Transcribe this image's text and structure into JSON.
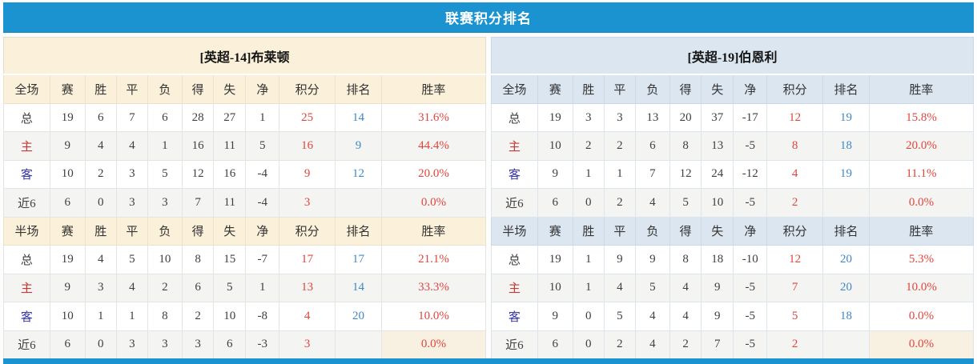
{
  "title": "联赛积分排名",
  "colors": {
    "title_bar": "#1B93D1",
    "home_header_bg": "#FBF0DA",
    "away_header_bg": "#DCE6F0",
    "points_text": "#E2453C",
    "rank_text": "#4288C7",
    "win_rate_text": "#E2453C",
    "home_row_label": "#C23A33",
    "away_row_label": "#3434AE"
  },
  "columns": [
    "赛",
    "胜",
    "平",
    "负",
    "得",
    "失",
    "净",
    "积分",
    "排名",
    "胜率"
  ],
  "teams": [
    {
      "name": "[英超-14]布莱顿",
      "sections": [
        {
          "scope": "全场",
          "rows": [
            {
              "label": "总",
              "values": [
                19,
                6,
                7,
                6,
                28,
                27,
                1
              ],
              "points": 25,
              "rank": "14",
              "win_rate": "31.6%"
            },
            {
              "label": "主",
              "values": [
                9,
                4,
                4,
                1,
                16,
                11,
                5
              ],
              "points": 16,
              "rank": "9",
              "win_rate": "44.4%"
            },
            {
              "label": "客",
              "values": [
                10,
                2,
                3,
                5,
                12,
                16,
                -4
              ],
              "points": 9,
              "rank": "12",
              "win_rate": "20.0%"
            },
            {
              "label": "近6",
              "values": [
                6,
                0,
                3,
                3,
                7,
                11,
                -4
              ],
              "points": 3,
              "rank": "",
              "win_rate": "0.0%"
            }
          ]
        },
        {
          "scope": "半场",
          "rows": [
            {
              "label": "总",
              "values": [
                19,
                4,
                5,
                10,
                8,
                15,
                -7
              ],
              "points": 17,
              "rank": "17",
              "win_rate": "21.1%"
            },
            {
              "label": "主",
              "values": [
                9,
                3,
                4,
                2,
                6,
                5,
                1
              ],
              "points": 13,
              "rank": "14",
              "win_rate": "33.3%"
            },
            {
              "label": "客",
              "values": [
                10,
                1,
                1,
                8,
                2,
                10,
                -8
              ],
              "points": 4,
              "rank": "20",
              "win_rate": "10.0%"
            },
            {
              "label": "近6",
              "values": [
                6,
                0,
                3,
                3,
                3,
                6,
                -3
              ],
              "points": 3,
              "rank": "",
              "win_rate": "0.0%"
            }
          ]
        }
      ]
    },
    {
      "name": "[英超-19]伯恩利",
      "sections": [
        {
          "scope": "全场",
          "rows": [
            {
              "label": "总",
              "values": [
                19,
                3,
                3,
                13,
                20,
                37,
                -17
              ],
              "points": 12,
              "rank": "19",
              "win_rate": "15.8%"
            },
            {
              "label": "主",
              "values": [
                10,
                2,
                2,
                6,
                8,
                13,
                -5
              ],
              "points": 8,
              "rank": "18",
              "win_rate": "20.0%"
            },
            {
              "label": "客",
              "values": [
                9,
                1,
                1,
                7,
                12,
                24,
                -12
              ],
              "points": 4,
              "rank": "19",
              "win_rate": "11.1%"
            },
            {
              "label": "近6",
              "values": [
                6,
                0,
                2,
                4,
                5,
                10,
                -5
              ],
              "points": 2,
              "rank": "",
              "win_rate": "0.0%"
            }
          ]
        },
        {
          "scope": "半场",
          "rows": [
            {
              "label": "总",
              "values": [
                19,
                1,
                9,
                9,
                8,
                18,
                -10
              ],
              "points": 12,
              "rank": "20",
              "win_rate": "5.3%"
            },
            {
              "label": "主",
              "values": [
                10,
                1,
                4,
                5,
                4,
                9,
                -5
              ],
              "points": 7,
              "rank": "20",
              "win_rate": "10.0%"
            },
            {
              "label": "客",
              "values": [
                9,
                0,
                5,
                4,
                4,
                9,
                -5
              ],
              "points": 5,
              "rank": "18",
              "win_rate": "0.0%"
            },
            {
              "label": "近6",
              "values": [
                6,
                0,
                2,
                4,
                2,
                7,
                -5
              ],
              "points": 2,
              "rank": "",
              "win_rate": "0.0%"
            }
          ]
        }
      ]
    }
  ]
}
